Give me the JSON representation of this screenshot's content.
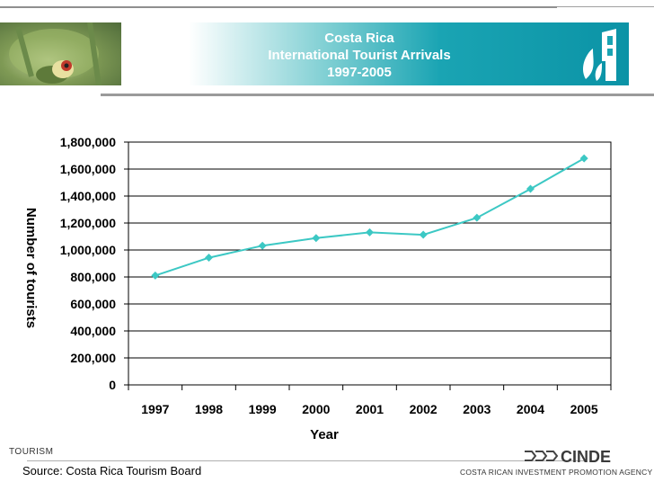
{
  "header": {
    "title_line1": "Costa Rica",
    "title_line2": "International Tourist Arrivals",
    "title_line3": "1997-2005"
  },
  "chart_data": {
    "type": "line",
    "title": "Costa Rica International Tourist Arrivals 1997-2005",
    "xlabel": "Year",
    "ylabel": "Number of tourists",
    "categories": [
      "1997",
      "1998",
      "1999",
      "2000",
      "2001",
      "2002",
      "2003",
      "2004",
      "2005"
    ],
    "series": [
      {
        "values": [
          811000,
          943000,
          1032000,
          1088000,
          1131000,
          1113000,
          1239000,
          1453000,
          1679000
        ],
        "color": "#3cc8c4"
      }
    ],
    "ylim": [
      0,
      1800000
    ],
    "yticks": [
      0,
      200000,
      400000,
      600000,
      800000,
      1000000,
      1200000,
      1400000,
      1600000,
      1800000
    ],
    "ytick_labels": [
      "0",
      "200,000",
      "400,000",
      "600,000",
      "800,000",
      "1,000,000",
      "1,200,000",
      "1,400,000",
      "1,600,000",
      "1,800,000"
    ],
    "grid": true,
    "legend": false,
    "marker": "diamond"
  },
  "footer": {
    "section_label": "TOURISM",
    "source": "Source: Costa Rica Tourism Board",
    "logo_text": "CINDE",
    "agency": "COSTA RICAN INVESTMENT PROMOTION AGENCY"
  }
}
